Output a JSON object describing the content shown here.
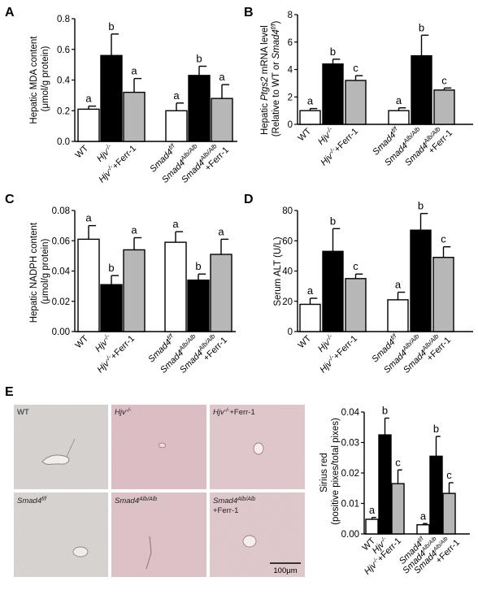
{
  "colors": {
    "white_bar": "#ffffff",
    "black_bar": "#000000",
    "gray_bar": "#b7b7b7",
    "micro_pink": "#d9b9bf",
    "micro_gray": "#cfcac7"
  },
  "chart_data": [
    {
      "panel": "A",
      "type": "bar",
      "ylabel_lines": [
        "Hepatic MDA content",
        "(μmol/g protein)"
      ],
      "ylim": [
        0,
        0.8
      ],
      "yticks": [
        "0.0",
        "0.2",
        "0.4",
        "0.6",
        "0.8"
      ],
      "groups": [
        {
          "bars": [
            {
              "value": 0.21,
              "err": 0.02,
              "sig": "a",
              "fill": "white"
            },
            {
              "value": 0.56,
              "err": 0.14,
              "sig": "b",
              "fill": "black"
            },
            {
              "value": 0.32,
              "err": 0.09,
              "sig": "a",
              "fill": "gray"
            }
          ]
        },
        {
          "bars": [
            {
              "value": 0.2,
              "err": 0.05,
              "sig": "a",
              "fill": "white"
            },
            {
              "value": 0.43,
              "err": 0.06,
              "sig": "b",
              "fill": "black"
            },
            {
              "value": 0.28,
              "err": 0.09,
              "sig": "a",
              "fill": "gray"
            }
          ]
        }
      ]
    },
    {
      "panel": "B",
      "type": "bar",
      "ylabel_lines": [
        "Hepatic Ptgs2 mRNA level",
        "(Relative to WT or Smad4f/f)"
      ],
      "ylim": [
        0,
        8
      ],
      "yticks": [
        "0",
        "2",
        "4",
        "6",
        "8"
      ],
      "groups": [
        {
          "bars": [
            {
              "value": 1.0,
              "err": 0.15,
              "sig": "a",
              "fill": "white"
            },
            {
              "value": 4.4,
              "err": 0.35,
              "sig": "b",
              "fill": "black"
            },
            {
              "value": 3.2,
              "err": 0.35,
              "sig": "c",
              "fill": "gray"
            }
          ]
        },
        {
          "bars": [
            {
              "value": 1.0,
              "err": 0.2,
              "sig": "a",
              "fill": "white"
            },
            {
              "value": 5.0,
              "err": 1.5,
              "sig": "b",
              "fill": "black"
            },
            {
              "value": 2.5,
              "err": 0.15,
              "sig": "c",
              "fill": "gray"
            }
          ]
        }
      ]
    },
    {
      "panel": "C",
      "type": "bar",
      "ylabel_lines": [
        "Hepatic NADPH content",
        "(μmol/g protein)"
      ],
      "ylim": [
        0,
        0.08
      ],
      "yticks": [
        "0.00",
        "0.02",
        "0.04",
        "0.06",
        "0.08"
      ],
      "groups": [
        {
          "bars": [
            {
              "value": 0.061,
              "err": 0.009,
              "sig": "a",
              "fill": "white"
            },
            {
              "value": 0.031,
              "err": 0.006,
              "sig": "b",
              "fill": "black"
            },
            {
              "value": 0.054,
              "err": 0.008,
              "sig": "a",
              "fill": "gray"
            }
          ]
        },
        {
          "bars": [
            {
              "value": 0.059,
              "err": 0.007,
              "sig": "a",
              "fill": "white"
            },
            {
              "value": 0.034,
              "err": 0.004,
              "sig": "b",
              "fill": "black"
            },
            {
              "value": 0.051,
              "err": 0.01,
              "sig": "a",
              "fill": "gray"
            }
          ]
        }
      ]
    },
    {
      "panel": "D",
      "type": "bar",
      "ylabel_lines": [
        "Serum ALT (U/L)"
      ],
      "ylim": [
        0,
        80
      ],
      "yticks": [
        "0",
        "20",
        "40",
        "60",
        "80"
      ],
      "groups": [
        {
          "bars": [
            {
              "value": 18,
              "err": 4,
              "sig": "a",
              "fill": "white"
            },
            {
              "value": 53,
              "err": 15,
              "sig": "b",
              "fill": "black"
            },
            {
              "value": 35,
              "err": 3,
              "sig": "c",
              "fill": "gray"
            }
          ]
        },
        {
          "bars": [
            {
              "value": 21,
              "err": 5,
              "sig": "a",
              "fill": "white"
            },
            {
              "value": 67,
              "err": 11,
              "sig": "b",
              "fill": "black"
            },
            {
              "value": 49,
              "err": 7,
              "sig": "c",
              "fill": "gray"
            }
          ]
        }
      ]
    },
    {
      "panel": "E",
      "type": "bar",
      "ylabel_lines": [
        "Sirius red",
        "(positive pixes/total pixes)"
      ],
      "ylim": [
        0,
        0.04
      ],
      "yticks": [
        "0.00",
        "0.01",
        "0.02",
        "0.03",
        "0.04"
      ],
      "groups": [
        {
          "bars": [
            {
              "value": 0.0048,
              "err": 0.0006,
              "sig": "a",
              "fill": "white"
            },
            {
              "value": 0.0325,
              "err": 0.0055,
              "sig": "b",
              "fill": "black"
            },
            {
              "value": 0.0165,
              "err": 0.0045,
              "sig": "c",
              "fill": "gray"
            }
          ]
        },
        {
          "bars": [
            {
              "value": 0.003,
              "err": 0.0004,
              "sig": "a",
              "fill": "white"
            },
            {
              "value": 0.0255,
              "err": 0.0065,
              "sig": "b",
              "fill": "black"
            },
            {
              "value": 0.0133,
              "err": 0.0035,
              "sig": "c",
              "fill": "gray"
            }
          ]
        }
      ]
    }
  ],
  "category_labels": {
    "wt": "WT",
    "hjv_ko": "Hjv-/-",
    "hjv_ko_ferr": "Hjv-/-+Ferr-1",
    "smad4_ff": "Smad4f/f",
    "smad4_alb": "Smad4Alb/Alb",
    "ferr": "+Ferr-1"
  },
  "micrographs": {
    "labels": [
      "WT",
      "Hjv-/-",
      "Hjv-/-+Ferr-1",
      "Smad4f/f",
      "Smad4Alb/Alb",
      "Smad4Alb/Alb",
      "+Ferr-1"
    ],
    "scale_bar": "100μm"
  }
}
